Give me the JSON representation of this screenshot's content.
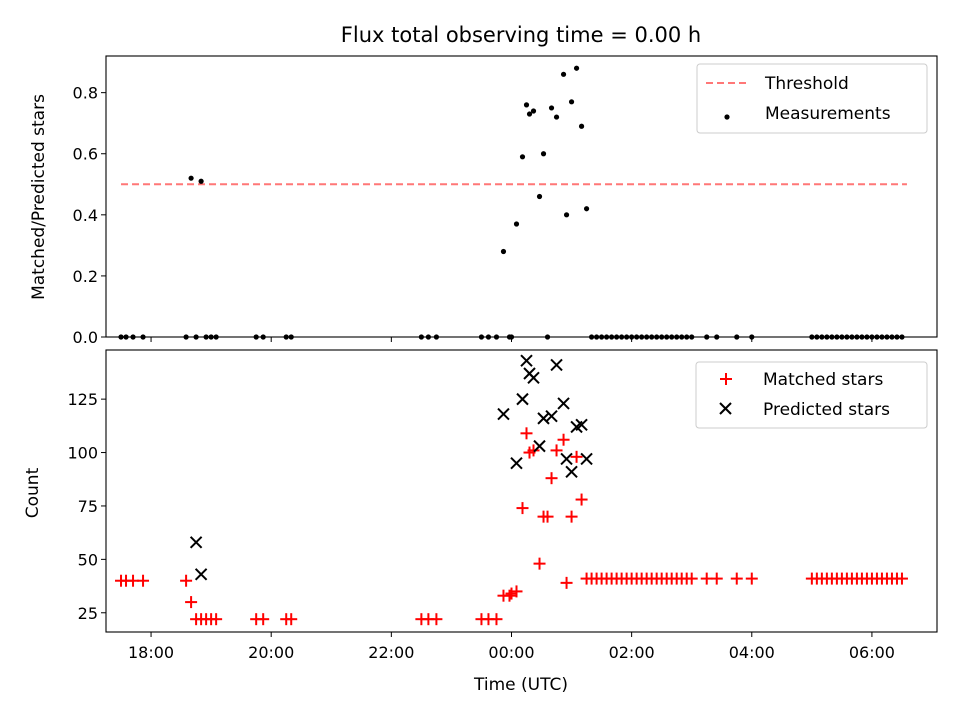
{
  "chart_data": [
    {
      "type": "scatter",
      "title": "Flux total observing time = 0.00 h",
      "xlabel": "",
      "ylabel": "Matched/Predicted stars",
      "ylim": [
        0,
        0.92
      ],
      "xlim": [
        "17:15",
        "07:05"
      ],
      "yticks": [
        "0.0",
        "0.2",
        "0.4",
        "0.6",
        "0.8"
      ],
      "grid": false,
      "legend_position": "top-right",
      "threshold": {
        "name": "Threshold",
        "value": 0.5,
        "x_range": [
          "17:30",
          "06:35"
        ],
        "color": "#ff7777",
        "style": "dashed"
      },
      "series": [
        {
          "name": "Measurements",
          "color": "#000000",
          "marker": "dot",
          "x": [
            "17:30",
            "17:35",
            "17:42",
            "17:52",
            "18:35",
            "18:40",
            "18:45",
            "18:50",
            "18:55",
            "19:00",
            "19:05",
            "19:45",
            "19:52",
            "20:15",
            "20:20",
            "22:30",
            "22:37",
            "22:45",
            "23:30",
            "23:37",
            "23:45",
            "23:52",
            "23:58",
            "00:00",
            "00:05",
            "00:11",
            "00:15",
            "00:18",
            "00:22",
            "00:28",
            "00:32",
            "00:36",
            "00:40",
            "00:45",
            "00:52",
            "00:55",
            "01:00",
            "01:05",
            "01:10",
            "01:15",
            "01:20",
            "01:25",
            "01:30",
            "01:35",
            "01:40",
            "01:45",
            "01:50",
            "01:55",
            "02:00",
            "02:05",
            "02:10",
            "02:15",
            "02:20",
            "02:25",
            "02:30",
            "02:35",
            "02:40",
            "02:45",
            "02:50",
            "02:55",
            "03:00",
            "03:15",
            "03:25",
            "03:45",
            "04:00",
            "05:00",
            "05:05",
            "05:10",
            "05:15",
            "05:20",
            "05:25",
            "05:30",
            "05:35",
            "05:40",
            "05:45",
            "05:50",
            "05:55",
            "06:00",
            "06:05",
            "06:10",
            "06:15",
            "06:20",
            "06:25",
            "06:30"
          ],
          "y": [
            0,
            0,
            0,
            0,
            0,
            0.52,
            0,
            0.51,
            0,
            0,
            0,
            0,
            0,
            0,
            0,
            0,
            0,
            0,
            0,
            0,
            0,
            0.28,
            0,
            0,
            0.37,
            0.59,
            0.76,
            0.73,
            0.74,
            0.46,
            0.6,
            0,
            0.75,
            0.72,
            0.86,
            0.4,
            0.77,
            0.88,
            0.69,
            0.42,
            0,
            0,
            0,
            0,
            0,
            0,
            0,
            0,
            0,
            0,
            0,
            0,
            0,
            0,
            0,
            0,
            0,
            0,
            0,
            0,
            0,
            0,
            0,
            0,
            0,
            0,
            0,
            0,
            0,
            0,
            0,
            0,
            0,
            0,
            0,
            0,
            0,
            0,
            0,
            0,
            0,
            0,
            0,
            0
          ]
        }
      ]
    },
    {
      "type": "scatter",
      "title": "",
      "xlabel": "Time (UTC)",
      "ylabel": "Count",
      "ylim": [
        16,
        148
      ],
      "xlim": [
        "17:15",
        "07:05"
      ],
      "yticks": [
        "25",
        "50",
        "75",
        "100",
        "125"
      ],
      "xticks": [
        "18:00",
        "20:00",
        "22:00",
        "00:00",
        "02:00",
        "04:00",
        "06:00"
      ],
      "grid": false,
      "legend_position": "top-right",
      "series": [
        {
          "name": "Matched stars",
          "color": "#ff0000",
          "marker": "plus",
          "x": [
            "17:30",
            "17:35",
            "17:42",
            "17:52",
            "18:35",
            "18:40",
            "18:45",
            "18:50",
            "18:55",
            "19:00",
            "19:05",
            "19:45",
            "19:52",
            "20:15",
            "20:20",
            "22:30",
            "22:37",
            "22:45",
            "23:30",
            "23:37",
            "23:45",
            "23:52",
            "23:58",
            "00:00",
            "00:05",
            "00:11",
            "00:15",
            "00:18",
            "00:22",
            "00:28",
            "00:32",
            "00:36",
            "00:40",
            "00:45",
            "00:52",
            "00:55",
            "01:00",
            "01:05",
            "01:10",
            "01:15",
            "01:20",
            "01:25",
            "01:30",
            "01:35",
            "01:40",
            "01:45",
            "01:50",
            "01:55",
            "02:00",
            "02:05",
            "02:10",
            "02:15",
            "02:20",
            "02:25",
            "02:30",
            "02:35",
            "02:40",
            "02:45",
            "02:50",
            "02:55",
            "03:00",
            "03:15",
            "03:25",
            "03:45",
            "04:00",
            "05:00",
            "05:05",
            "05:10",
            "05:15",
            "05:20",
            "05:25",
            "05:30",
            "05:35",
            "05:40",
            "05:45",
            "05:50",
            "05:55",
            "06:00",
            "06:05",
            "06:10",
            "06:15",
            "06:20",
            "06:25",
            "06:30"
          ],
          "y": [
            40,
            40,
            40,
            40,
            40,
            30,
            22,
            22,
            22,
            22,
            22,
            22,
            22,
            22,
            22,
            22,
            22,
            22,
            22,
            22,
            22,
            33,
            33,
            34,
            35,
            74,
            109,
            100,
            101,
            48,
            70,
            70,
            88,
            101,
            106,
            39,
            70,
            98,
            78,
            41,
            41,
            41,
            41,
            41,
            41,
            41,
            41,
            41,
            41,
            41,
            41,
            41,
            41,
            41,
            41,
            41,
            41,
            41,
            41,
            41,
            41,
            41,
            41,
            41,
            41,
            41,
            41,
            41,
            41,
            41,
            41,
            41,
            41,
            41,
            41,
            41,
            41,
            41,
            41,
            41,
            41,
            41,
            41,
            41
          ]
        },
        {
          "name": "Predicted stars",
          "color": "#000000",
          "marker": "x",
          "x": [
            "18:45",
            "18:50",
            "23:52",
            "00:05",
            "00:11",
            "00:15",
            "00:18",
            "00:22",
            "00:28",
            "00:32",
            "00:40",
            "00:45",
            "00:52",
            "00:55",
            "01:00",
            "01:05",
            "01:10",
            "01:15"
          ],
          "y": [
            58,
            43,
            118,
            95,
            125,
            143,
            137,
            135,
            103,
            116,
            117,
            141,
            123,
            97,
            91,
            112,
            113,
            97
          ]
        }
      ]
    }
  ]
}
